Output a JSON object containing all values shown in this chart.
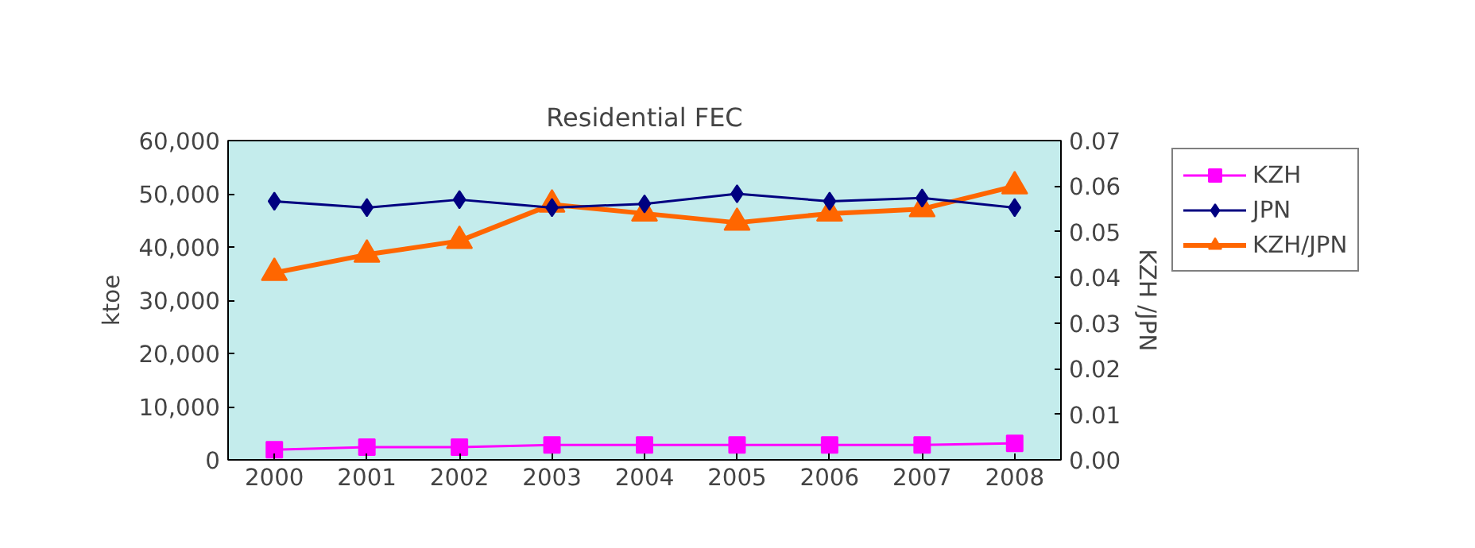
{
  "chart_data": {
    "type": "line",
    "title": "Residential FEC",
    "ylabel": "ktoe",
    "y2label": "KZH /JPN",
    "categories": [
      "2000",
      "2001",
      "2002",
      "2003",
      "2004",
      "2005",
      "2006",
      "2007",
      "2008"
    ],
    "ylim": [
      0,
      60000
    ],
    "yticks": [
      {
        "value": 0,
        "label": "0"
      },
      {
        "value": 10000,
        "label": "10,000"
      },
      {
        "value": 20000,
        "label": "20,000"
      },
      {
        "value": 30000,
        "label": "30,000"
      },
      {
        "value": 40000,
        "label": "40,000"
      },
      {
        "value": 50000,
        "label": "50,000"
      },
      {
        "value": 60000,
        "label": "60,000"
      }
    ],
    "y2lim": [
      0,
      0.07
    ],
    "y2ticks": [
      {
        "value": 0,
        "label": "0.00"
      },
      {
        "value": 0.01,
        "label": "0.01"
      },
      {
        "value": 0.02,
        "label": "0.02"
      },
      {
        "value": 0.03,
        "label": "0.03"
      },
      {
        "value": 0.04,
        "label": "0.04"
      },
      {
        "value": 0.05,
        "label": "0.05"
      },
      {
        "value": 0.06,
        "label": "0.06"
      },
      {
        "value": 0.07,
        "label": "0.07"
      }
    ],
    "grid": false,
    "legend": "right",
    "series": [
      {
        "name": "KZH",
        "color": "#ff00ff",
        "marker": "square",
        "values": [
          1900,
          2400,
          2400,
          2800,
          2800,
          2800,
          2800,
          2800,
          3100
        ]
      },
      {
        "name": "JPN",
        "color": "#000080",
        "marker": "diamond",
        "values": [
          48600,
          47400,
          48900,
          47400,
          48100,
          50000,
          48600,
          49200,
          47400
        ]
      },
      {
        "name": "KZH/JPN",
        "color": "#ff6600",
        "marker": "triangle",
        "axis": "y2",
        "values": [
          0.041,
          0.045,
          0.048,
          0.056,
          0.054,
          0.052,
          0.054,
          0.055,
          0.06
        ]
      }
    ]
  }
}
